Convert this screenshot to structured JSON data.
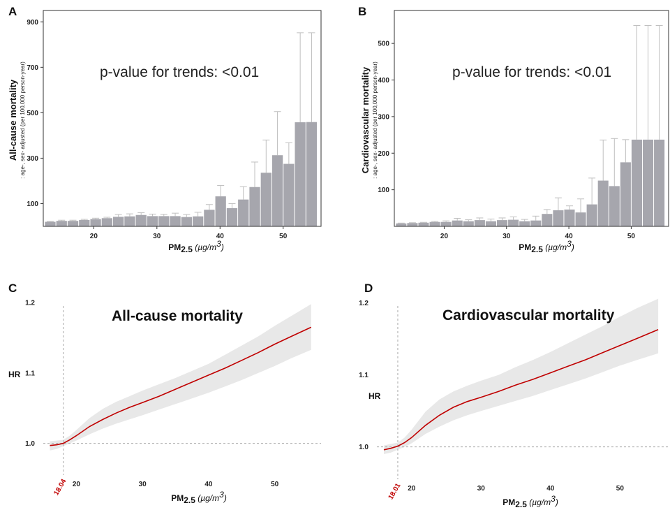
{
  "figure": {
    "xlabel_main": "PM",
    "xlabel_sub": "2.5",
    "xlabel_unit": " (µg/m",
    "xlabel_sup": "3",
    "xlabel_close": ")"
  },
  "panels": {
    "A": {
      "letter": "A",
      "annotation": "p-value for trends: <0.01",
      "ylabel_main": "All-cause mortality",
      "ylabel_sub": ": age-, sex- adjusted (per 100,000 person-year)"
    },
    "B": {
      "letter": "B",
      "annotation": "p-value for trends: <0.01",
      "ylabel_main": "Cardiovascular mortality",
      "ylabel_sub": ": age-, sex- adjusted (per 100,000 person-year)"
    },
    "C": {
      "letter": "C",
      "title": "All-cause mortality",
      "ylabel": "HR",
      "threshold_label": "18.04"
    },
    "D": {
      "letter": "D",
      "title": "Cardiovascular mortality",
      "ylabel": "HR",
      "threshold_label": "18.01"
    }
  },
  "colors": {
    "bar": "#a6a6ad",
    "error": "#bfbfbf",
    "curve": "#c00000",
    "band": "#e8e8e8",
    "threshold": "#c00000"
  },
  "chart_data": [
    {
      "panel": "A",
      "type": "bar",
      "title": "p-value for trends: <0.01",
      "xlabel": "PM2.5 (µg/m3)",
      "ylabel": "All-cause mortality : age-, sex- adjusted (per 100,000 person-year)",
      "xlim": [
        12,
        56
      ],
      "ylim": [
        0,
        950
      ],
      "xticks": [
        20,
        30,
        40,
        50
      ],
      "yticks": [
        100,
        300,
        500,
        700,
        900
      ],
      "bin_width": 1.8,
      "x": [
        13.1,
        14.9,
        16.7,
        18.5,
        20.3,
        22.1,
        23.9,
        25.7,
        27.5,
        29.3,
        31.1,
        32.9,
        34.7,
        36.5,
        38.3,
        40.1,
        41.9,
        43.7,
        45.5,
        47.3,
        49.1,
        50.9,
        52.7,
        54.5
      ],
      "values": [
        20,
        24,
        24,
        28,
        32,
        36,
        42,
        44,
        50,
        45,
        45,
        45,
        41,
        44,
        73,
        132,
        80,
        118,
        173,
        236,
        313,
        275,
        458,
        459
      ],
      "error_upper": [
        22,
        27,
        27,
        31,
        36,
        40,
        52,
        55,
        60,
        54,
        53,
        58,
        52,
        62,
        96,
        180,
        100,
        175,
        283,
        380,
        505,
        368,
        852,
        852
      ]
    },
    {
      "panel": "B",
      "type": "bar",
      "title": "p-value for trends: <0.01",
      "xlabel": "PM2.5 (µg/m3)",
      "ylabel": "Cardiovascular mortality : age-, sex- adjusted (per 100,000 person-year)",
      "xlim": [
        12,
        56
      ],
      "ylim": [
        0,
        590
      ],
      "xticks": [
        20,
        30,
        40,
        50
      ],
      "yticks": [
        100,
        200,
        300,
        400,
        500
      ],
      "bin_width": 1.8,
      "x": [
        13.1,
        14.9,
        16.7,
        18.5,
        20.3,
        22.1,
        23.9,
        25.7,
        27.5,
        29.3,
        31.1,
        32.9,
        34.7,
        36.5,
        38.3,
        40.1,
        41.9,
        43.7,
        45.5,
        47.3,
        49.1,
        50.9,
        52.7,
        54.5
      ],
      "values": [
        8,
        9,
        10,
        12,
        12,
        16,
        14,
        17,
        14,
        17,
        18,
        14,
        16,
        34,
        44,
        46,
        38,
        60,
        125,
        110,
        175,
        237,
        237,
        237
      ],
      "error_upper": [
        9,
        10,
        11,
        14,
        15,
        22,
        18,
        23,
        20,
        23,
        26,
        19,
        28,
        46,
        78,
        56,
        75,
        132,
        236,
        240,
        237,
        549,
        549,
        549
      ]
    },
    {
      "panel": "C",
      "type": "line",
      "title": "All-cause mortality",
      "xlabel": "PM2.5 (µg/m3)",
      "ylabel": "HR",
      "xlim": [
        15,
        57
      ],
      "ylim": [
        0.955,
        1.225
      ],
      "xticks": [
        20,
        30,
        40,
        50
      ],
      "yticks": [
        1.0,
        1.1,
        1.2
      ],
      "threshold_x": 18.04,
      "reference_y": 1.0,
      "x": [
        16,
        17,
        18,
        19,
        20,
        22,
        24,
        26,
        28,
        30,
        32.5,
        35,
        37.5,
        40,
        42.5,
        45,
        47.5,
        50,
        52.5,
        55.5
      ],
      "y": [
        0.997,
        0.998,
        1.0,
        1.005,
        1.011,
        1.024,
        1.034,
        1.043,
        1.051,
        1.058,
        1.067,
        1.077,
        1.087,
        1.097,
        1.107,
        1.118,
        1.129,
        1.141,
        1.152,
        1.165
      ],
      "lower": [
        0.99,
        0.992,
        0.996,
        1.0,
        1.004,
        1.013,
        1.021,
        1.028,
        1.034,
        1.04,
        1.048,
        1.056,
        1.064,
        1.072,
        1.081,
        1.09,
        1.1,
        1.11,
        1.121,
        1.133
      ],
      "upper": [
        1.003,
        1.004,
        1.005,
        1.011,
        1.019,
        1.036,
        1.049,
        1.059,
        1.067,
        1.075,
        1.084,
        1.093,
        1.103,
        1.113,
        1.126,
        1.139,
        1.152,
        1.167,
        1.181,
        1.198
      ]
    },
    {
      "panel": "D",
      "type": "line",
      "title": "Cardiovascular mortality",
      "xlabel": "PM2.5 (µg/m3)",
      "ylabel": "HR",
      "xlim": [
        15,
        57
      ],
      "ylim": [
        0.955,
        1.225
      ],
      "xticks": [
        20,
        30,
        40,
        50
      ],
      "yticks": [
        1.0,
        1.1,
        1.2
      ],
      "threshold_x": 18.01,
      "reference_y": 1.0,
      "x": [
        16,
        17,
        18,
        19,
        20,
        22,
        24,
        26,
        28,
        30,
        32.5,
        35,
        37.5,
        40,
        42.5,
        45,
        47.5,
        50,
        52.5,
        55.5
      ],
      "y": [
        0.996,
        0.998,
        1.001,
        1.006,
        1.013,
        1.03,
        1.044,
        1.055,
        1.063,
        1.069,
        1.077,
        1.086,
        1.094,
        1.103,
        1.112,
        1.121,
        1.131,
        1.141,
        1.151,
        1.163
      ],
      "lower": [
        0.99,
        0.992,
        0.996,
        1.0,
        1.005,
        1.018,
        1.028,
        1.037,
        1.044,
        1.05,
        1.057,
        1.064,
        1.071,
        1.079,
        1.087,
        1.095,
        1.104,
        1.113,
        1.121,
        1.13
      ],
      "upper": [
        1.002,
        1.004,
        1.006,
        1.013,
        1.024,
        1.049,
        1.066,
        1.077,
        1.085,
        1.092,
        1.1,
        1.111,
        1.121,
        1.132,
        1.144,
        1.156,
        1.168,
        1.181,
        1.193,
        1.206
      ]
    }
  ]
}
